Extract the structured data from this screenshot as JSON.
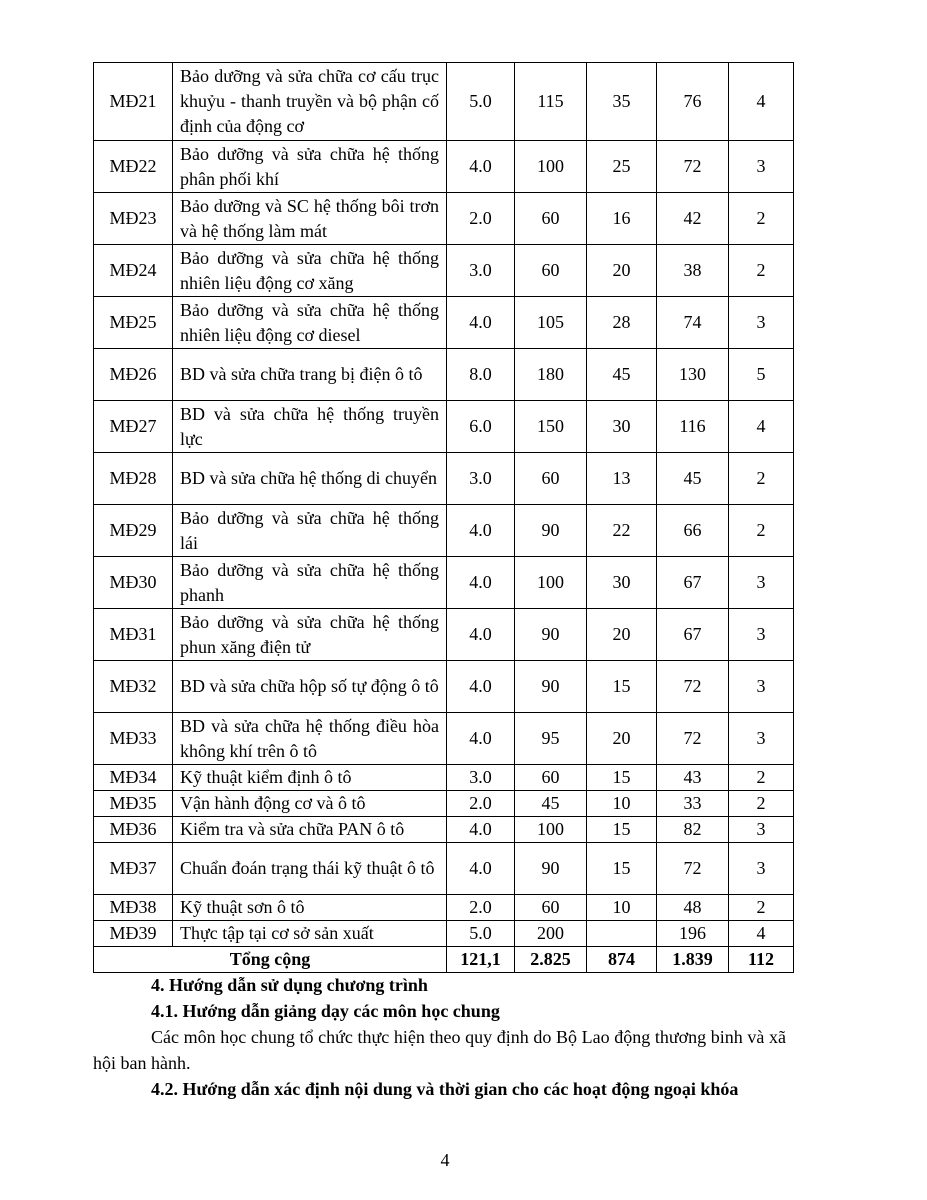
{
  "table": {
    "rows": [
      {
        "code": "MĐ21",
        "name": "Bảo dưỡng và sửa chữa cơ cấu trục khuỷu - thanh truyền và bộ phận cố định của động cơ",
        "c1": "5.0",
        "c2": "115",
        "c3": "35",
        "c4": "76",
        "c5": "4",
        "lines": 3
      },
      {
        "code": "MĐ22",
        "name": "Bảo dưỡng và sửa chữa hệ thống phân phối khí",
        "c1": "4.0",
        "c2": "100",
        "c3": "25",
        "c4": "72",
        "c5": "3",
        "lines": 2
      },
      {
        "code": "MĐ23",
        "name": "Bảo dưỡng và SC hệ thống bôi trơn và hệ thống làm mát",
        "c1": "2.0",
        "c2": "60",
        "c3": "16",
        "c4": "42",
        "c5": "2",
        "lines": 2
      },
      {
        "code": "MĐ24",
        "name": "Bảo dưỡng và sửa chữa hệ thống nhiên liệu động cơ xăng",
        "c1": "3.0",
        "c2": "60",
        "c3": "20",
        "c4": "38",
        "c5": "2",
        "lines": 2
      },
      {
        "code": "MĐ25",
        "name": "Bảo dưỡng và sửa chữa hệ thống nhiên liệu động cơ diesel",
        "c1": "4.0",
        "c2": "105",
        "c3": "28",
        "c4": "74",
        "c5": "3",
        "lines": 2
      },
      {
        "code": "MĐ26",
        "name": "BD và sửa chữa trang bị điện ô tô",
        "c1": "8.0",
        "c2": "180",
        "c3": "45",
        "c4": "130",
        "c5": "5",
        "lines": 2
      },
      {
        "code": "MĐ27",
        "name": "BD và sửa chữa hệ thống truyền lực",
        "c1": "6.0",
        "c2": "150",
        "c3": "30",
        "c4": "116",
        "c5": "4",
        "lines": 2
      },
      {
        "code": "MĐ28",
        "name": "BD và sửa chữa hệ thống di chuyển",
        "c1": "3.0",
        "c2": "60",
        "c3": "13",
        "c4": "45",
        "c5": "2",
        "lines": 2
      },
      {
        "code": "MĐ29",
        "name": "Bảo dưỡng và sửa chữa hệ thống lái",
        "c1": "4.0",
        "c2": "90",
        "c3": "22",
        "c4": "66",
        "c5": "2",
        "lines": 2
      },
      {
        "code": "MĐ30",
        "name": "Bảo dưỡng và sửa chữa hệ thống phanh",
        "c1": "4.0",
        "c2": "100",
        "c3": "30",
        "c4": "67",
        "c5": "3",
        "lines": 2
      },
      {
        "code": "MĐ31",
        "name": "Bảo dưỡng và sửa chữa hệ thống phun xăng điện tử",
        "c1": "4.0",
        "c2": "90",
        "c3": "20",
        "c4": "67",
        "c5": "3",
        "lines": 2
      },
      {
        "code": "MĐ32",
        "name": "BD và sửa chữa hộp số tự động ô tô",
        "c1": "4.0",
        "c2": "90",
        "c3": "15",
        "c4": "72",
        "c5": "3",
        "lines": 2
      },
      {
        "code": "MĐ33",
        "name": "BD và sửa chữa hệ thống điều hòa không khí trên ô tô",
        "c1": "4.0",
        "c2": "95",
        "c3": "20",
        "c4": "72",
        "c5": "3",
        "lines": 2
      },
      {
        "code": "MĐ34",
        "name": "Kỹ thuật kiểm định ô tô",
        "c1": "3.0",
        "c2": "60",
        "c3": "15",
        "c4": "43",
        "c5": "2",
        "lines": 1
      },
      {
        "code": "MĐ35",
        "name": "Vận hành động cơ và ô tô",
        "c1": "2.0",
        "c2": "45",
        "c3": "10",
        "c4": "33",
        "c5": "2",
        "lines": 1
      },
      {
        "code": "MĐ36",
        "name": "Kiểm tra và sửa chữa PAN ô tô",
        "c1": "4.0",
        "c2": "100",
        "c3": "15",
        "c4": "82",
        "c5": "3",
        "lines": 1
      },
      {
        "code": "MĐ37",
        "name": "Chuẩn đoán trạng thái kỹ thuật ô tô",
        "c1": "4.0",
        "c2": "90",
        "c3": "15",
        "c4": "72",
        "c5": "3",
        "lines": 2
      },
      {
        "code": "MĐ38",
        "name": "Kỹ thuật sơn ô tô",
        "c1": "2.0",
        "c2": "60",
        "c3": "10",
        "c4": "48",
        "c5": "2",
        "lines": 1
      },
      {
        "code": "MĐ39",
        "name": "Thực tập tại cơ sở sản xuất",
        "c1": "5.0",
        "c2": "200",
        "c3": "",
        "c4": "196",
        "c5": "4",
        "lines": 1
      }
    ],
    "total": {
      "label": "Tổng cộng",
      "c1": "121,1",
      "c2": "2.825",
      "c3": "874",
      "c4": "1.839",
      "c5": "112"
    }
  },
  "section4": {
    "heading": "4. Hướng dẫn sử dụng chương trình",
    "sub1": "4.1. Hướng dẫn giảng dạy các môn học chung",
    "para1": "Các môn học chung tổ chức thực hiện theo quy định do Bộ Lao động thương binh và xã hội ban hành.",
    "sub2": "4.2. Hướng dẫn xác định nội dung và thời gian cho các hoạt động ngoại khóa"
  },
  "page_number": "4"
}
